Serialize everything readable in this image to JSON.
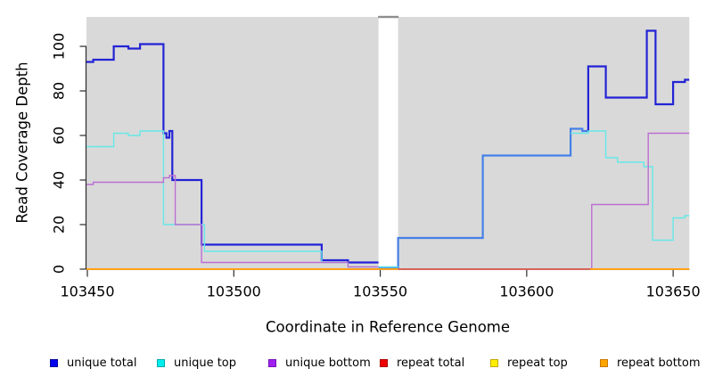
{
  "chart": {
    "ylabel": "Read Coverage Depth",
    "xlabel": "Coordinate in Reference Genome",
    "plot_bg": "#D9D9D9",
    "axis_color": "#2B2B2B",
    "tick_label_color": "#000000",
    "x_ticks": [
      103450,
      103500,
      103550,
      103600,
      103650
    ],
    "y_ticks": [
      0,
      20,
      40,
      60,
      80,
      100
    ]
  },
  "chart_data": {
    "type": "line",
    "step": true,
    "title": "",
    "xlabel": "Coordinate in Reference Genome",
    "ylabel": "Read Coverage Depth",
    "xlim": [
      103449.7,
      103655.5
    ],
    "ylim": [
      0,
      113
    ],
    "grid": false,
    "legend_position": "bottom",
    "gap_band": {
      "from": 103549.4,
      "to": 103556.1,
      "fill": "#FFFFFF",
      "cap_color": "#8E8E8E"
    },
    "series": [
      {
        "name": "unique total",
        "line_color": "#2323D6",
        "legend_fill": "#0000EE",
        "legend_border": "#0000A0",
        "segments": [
          {
            "color": "#2323D6",
            "end": 103549.4,
            "points": [
              [
                103449.7,
                93
              ],
              [
                103452,
                94
              ],
              [
                103459,
                100
              ],
              [
                103464,
                99
              ],
              [
                103468,
                101
              ],
              [
                103476,
                61
              ],
              [
                103477,
                59
              ],
              [
                103478,
                62
              ],
              [
                103479,
                40
              ],
              [
                103489,
                11
              ],
              [
                103530,
                4
              ],
              [
                103539,
                3
              ]
            ]
          },
          {
            "color": "#4480E8",
            "end": 103621,
            "points": [
              [
                103549.4,
                0.8
              ],
              [
                103556.1,
                14
              ],
              [
                103585,
                51
              ],
              [
                103615,
                63
              ],
              [
                103619,
                62
              ]
            ],
            "note": "unique total and unique top coincide here (blended color)"
          },
          {
            "color": "#2323D6",
            "end": 103655.5,
            "points": [
              [
                103620.9,
                62
              ],
              [
                103621,
                91
              ],
              [
                103627,
                77
              ],
              [
                103641,
                107
              ],
              [
                103644,
                74
              ],
              [
                103650,
                84
              ],
              [
                103654,
                85
              ]
            ]
          }
        ]
      },
      {
        "name": "unique top",
        "line_color": "#66E8E8",
        "legend_fill": "#00EEEE",
        "legend_border": "#00AAAA",
        "segments": [
          {
            "color": "#66E8E8",
            "end": 103556.1,
            "points": [
              [
                103449.7,
                55
              ],
              [
                103459,
                61
              ],
              [
                103464,
                60
              ],
              [
                103468,
                62
              ],
              [
                103476,
                20
              ],
              [
                103490,
                8
              ],
              [
                103530,
                3
              ],
              [
                103539,
                1
              ]
            ]
          },
          {
            "color": "#66E8E8",
            "end": 103655.5,
            "points": [
              [
                103615,
                61
              ],
              [
                103621,
                62
              ],
              [
                103627,
                50
              ],
              [
                103631,
                48
              ],
              [
                103640,
                46
              ],
              [
                103643,
                13
              ],
              [
                103650,
                23
              ],
              [
                103654,
                24
              ]
            ]
          }
        ]
      },
      {
        "name": "unique bottom",
        "line_color": "#BB6FD2",
        "legend_fill": "#A020F0",
        "legend_border": "#7A10B8",
        "segments": [
          {
            "color": "#BB6FD2",
            "end": 103549.4,
            "points": [
              [
                103449.7,
                38
              ],
              [
                103452,
                39
              ],
              [
                103476,
                41
              ],
              [
                103478,
                42
              ],
              [
                103480,
                20
              ],
              [
                103489,
                3
              ],
              [
                103539,
                1
              ]
            ]
          },
          {
            "color": "#BB6FD2",
            "end": 103655.5,
            "points": [
              [
                103622,
                0
              ],
              [
                103622.2,
                29
              ],
              [
                103641.5,
                61
              ]
            ]
          }
        ]
      },
      {
        "name": "repeat total",
        "line_color": "#CC2222",
        "legend_fill": "#EE0000",
        "legend_border": "#AA0000",
        "segments": [
          {
            "color": "#CC2222",
            "end": 103655.5,
            "points": [
              [
                103449.7,
                0
              ]
            ]
          }
        ]
      },
      {
        "name": "repeat top",
        "line_color": "#FFEE00",
        "legend_fill": "#FFEE00",
        "legend_border": "#C8A800",
        "segments": [
          {
            "color": "#FFEE00",
            "end": 103655.5,
            "points": [
              [
                103449.7,
                0
              ]
            ]
          }
        ]
      },
      {
        "name": "repeat bottom",
        "line_color": "#FFA01A",
        "legend_fill": "#FFA500",
        "legend_border": "#C87800",
        "segments": [
          {
            "color": "#FFA01A",
            "end": 103655.5,
            "points": [
              [
                103449.7,
                0
              ]
            ]
          }
        ]
      }
    ],
    "baseline_overlay": {
      "color": "#C9526F",
      "from": 103556.1,
      "to": 103621.7,
      "note": "overplotted zero lines appear pink between gap and 103622"
    }
  }
}
